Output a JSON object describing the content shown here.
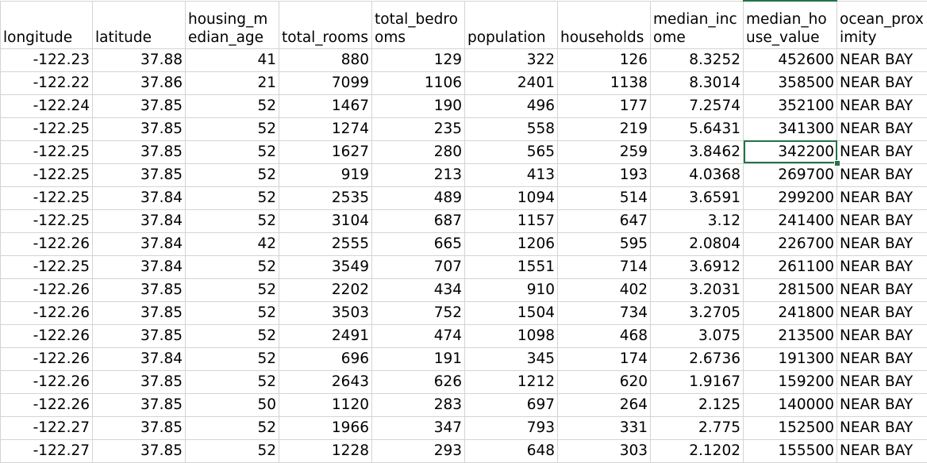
{
  "sheet": {
    "columns": [
      {
        "key": "longitude",
        "label": "longitude"
      },
      {
        "key": "latitude",
        "label": "latitude"
      },
      {
        "key": "housing_median_age",
        "label": "housing_median_age"
      },
      {
        "key": "total_rooms",
        "label": "total_rooms"
      },
      {
        "key": "total_bedrooms",
        "label": "total_bedrooms"
      },
      {
        "key": "population",
        "label": "population"
      },
      {
        "key": "households",
        "label": "households"
      },
      {
        "key": "median_income",
        "label": "median_income"
      },
      {
        "key": "median_house_value",
        "label": "median_house_value"
      },
      {
        "key": "ocean_proximity",
        "label": "ocean_proximity"
      }
    ],
    "rows": [
      [
        "-122.23",
        "37.88",
        "41",
        "880",
        "129",
        "322",
        "126",
        "8.3252",
        "452600",
        "NEAR BAY"
      ],
      [
        "-122.22",
        "37.86",
        "21",
        "7099",
        "1106",
        "2401",
        "1138",
        "8.3014",
        "358500",
        "NEAR BAY"
      ],
      [
        "-122.24",
        "37.85",
        "52",
        "1467",
        "190",
        "496",
        "177",
        "7.2574",
        "352100",
        "NEAR BAY"
      ],
      [
        "-122.25",
        "37.85",
        "52",
        "1274",
        "235",
        "558",
        "219",
        "5.6431",
        "341300",
        "NEAR BAY"
      ],
      [
        "-122.25",
        "37.85",
        "52",
        "1627",
        "280",
        "565",
        "259",
        "3.8462",
        "342200",
        "NEAR BAY"
      ],
      [
        "-122.25",
        "37.85",
        "52",
        "919",
        "213",
        "413",
        "193",
        "4.0368",
        "269700",
        "NEAR BAY"
      ],
      [
        "-122.25",
        "37.84",
        "52",
        "2535",
        "489",
        "1094",
        "514",
        "3.6591",
        "299200",
        "NEAR BAY"
      ],
      [
        "-122.25",
        "37.84",
        "52",
        "3104",
        "687",
        "1157",
        "647",
        "3.12",
        "241400",
        "NEAR BAY"
      ],
      [
        "-122.26",
        "37.84",
        "42",
        "2555",
        "665",
        "1206",
        "595",
        "2.0804",
        "226700",
        "NEAR BAY"
      ],
      [
        "-122.25",
        "37.84",
        "52",
        "3549",
        "707",
        "1551",
        "714",
        "3.6912",
        "261100",
        "NEAR BAY"
      ],
      [
        "-122.26",
        "37.85",
        "52",
        "2202",
        "434",
        "910",
        "402",
        "3.2031",
        "281500",
        "NEAR BAY"
      ],
      [
        "-122.26",
        "37.85",
        "52",
        "3503",
        "752",
        "1504",
        "734",
        "3.2705",
        "241800",
        "NEAR BAY"
      ],
      [
        "-122.26",
        "37.85",
        "52",
        "2491",
        "474",
        "1098",
        "468",
        "3.075",
        "213500",
        "NEAR BAY"
      ],
      [
        "-122.26",
        "37.84",
        "52",
        "696",
        "191",
        "345",
        "174",
        "2.6736",
        "191300",
        "NEAR BAY"
      ],
      [
        "-122.26",
        "37.85",
        "52",
        "2643",
        "626",
        "1212",
        "620",
        "1.9167",
        "159200",
        "NEAR BAY"
      ],
      [
        "-122.26",
        "37.85",
        "50",
        "1120",
        "283",
        "697",
        "264",
        "2.125",
        "140000",
        "NEAR BAY"
      ],
      [
        "-122.27",
        "37.85",
        "52",
        "1966",
        "347",
        "793",
        "331",
        "2.775",
        "152500",
        "NEAR BAY"
      ],
      [
        "-122.27",
        "37.85",
        "52",
        "1228",
        "293",
        "648",
        "303",
        "2.1202",
        "155500",
        "NEAR BAY"
      ]
    ],
    "selected_cell": {
      "row": 4,
      "col": 8
    },
    "accent_color": "#217346",
    "gridline_color": "#d4d4d4"
  }
}
